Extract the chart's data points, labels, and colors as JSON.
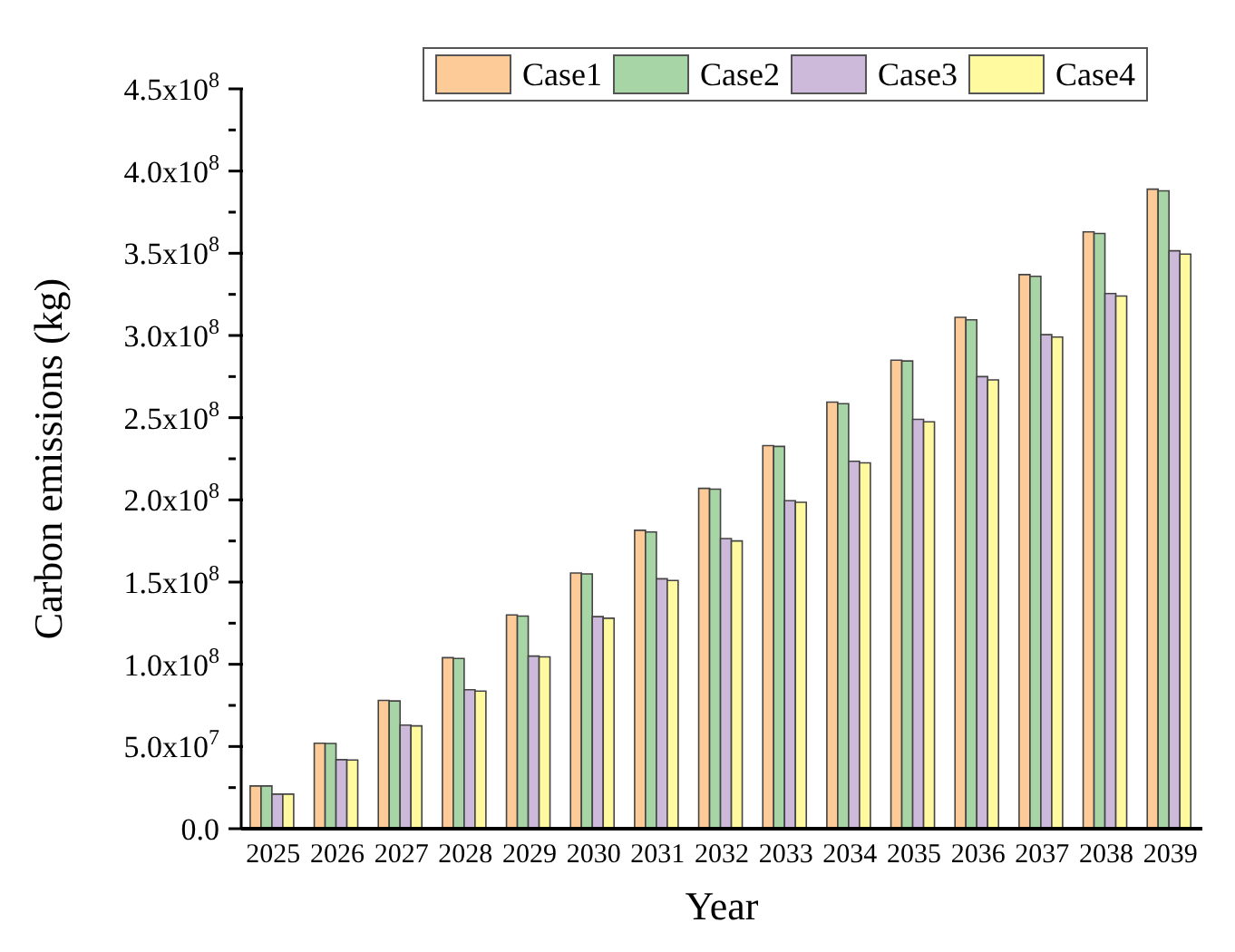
{
  "chart_data": {
    "type": "bar",
    "xlabel": "Year",
    "ylabel": "Carbon emissions (kg)",
    "categories": [
      "2025",
      "2026",
      "2027",
      "2028",
      "2029",
      "2030",
      "2031",
      "2032",
      "2033",
      "2034",
      "2035",
      "2036",
      "2037",
      "2038",
      "2039"
    ],
    "series": [
      {
        "name": "Case1",
        "color": "#fdcb98",
        "values": [
          26000000,
          52000000,
          78000000,
          104000000,
          130000000,
          155500000,
          181500000,
          207000000,
          233000000,
          259500000,
          285000000,
          311000000,
          337000000,
          363000000,
          389000000
        ]
      },
      {
        "name": "Case2",
        "color": "#a8d5a6",
        "values": [
          26000000,
          51800000,
          77700000,
          103500000,
          129300000,
          155000000,
          180500000,
          206500000,
          232500000,
          258500000,
          284500000,
          309500000,
          336000000,
          362000000,
          388000000
        ]
      },
      {
        "name": "Case3",
        "color": "#cdbadb",
        "values": [
          21000000,
          42000000,
          63000000,
          84500000,
          105000000,
          129000000,
          152000000,
          176500000,
          199500000,
          223500000,
          249000000,
          275000000,
          300500000,
          325500000,
          351500000
        ]
      },
      {
        "name": "Case4",
        "color": "#fff9a0",
        "values": [
          21000000,
          41800000,
          62500000,
          83700000,
          104500000,
          128000000,
          151000000,
          175000000,
          198500000,
          222500000,
          247500000,
          273000000,
          299000000,
          324000000,
          349500000
        ]
      }
    ],
    "ylim": [
      0,
      450000000
    ],
    "yticks": [
      {
        "value": 0,
        "label": "0.0"
      },
      {
        "value": 25000000,
        "label": null
      },
      {
        "value": 50000000,
        "label": "5.0x10$^{7}$"
      },
      {
        "value": 75000000,
        "label": null
      },
      {
        "value": 100000000,
        "label": "1.0x10$^{8}$"
      },
      {
        "value": 125000000,
        "label": null
      },
      {
        "value": 150000000,
        "label": "1.5x10$^{8}$"
      },
      {
        "value": 175000000,
        "label": null
      },
      {
        "value": 200000000,
        "label": "2.0x10$^{8}$"
      },
      {
        "value": 225000000,
        "label": null
      },
      {
        "value": 250000000,
        "label": "2.5x10$^{8}$"
      },
      {
        "value": 275000000,
        "label": null
      },
      {
        "value": 300000000,
        "label": "3.0x10$^{8}$"
      },
      {
        "value": 325000000,
        "label": null
      },
      {
        "value": 350000000,
        "label": "3.5x10$^{8}$"
      },
      {
        "value": 375000000,
        "label": null
      },
      {
        "value": 400000000,
        "label": "4.0x10$^{8}$"
      },
      {
        "value": 425000000,
        "label": null
      },
      {
        "value": 450000000,
        "label": "4.5x10$^{8}$"
      }
    ],
    "grid": false,
    "legend": "top right"
  }
}
